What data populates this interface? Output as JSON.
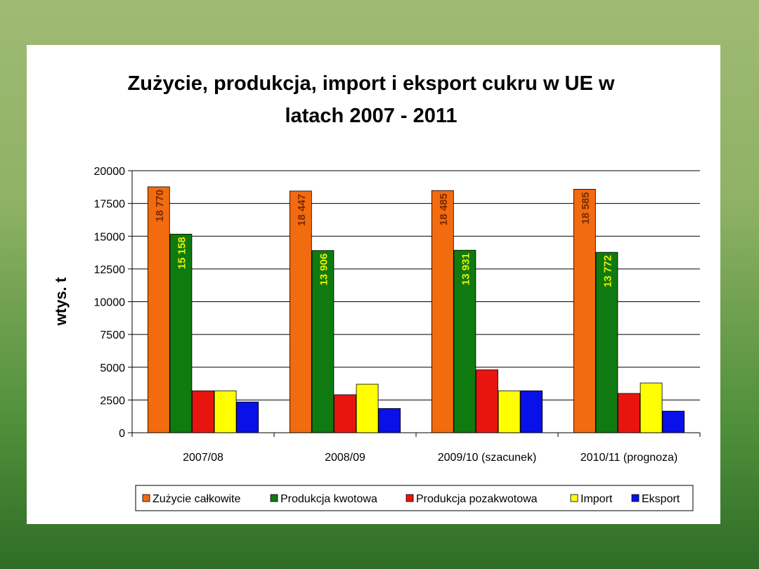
{
  "chart_data": {
    "type": "bar",
    "title": [
      "Zużycie, produkcja, import i eksport cukru w UE w",
      "latach 2007 - 2011"
    ],
    "ylabel": "wtys. t",
    "xlabel": "",
    "ylim": [
      0,
      20000
    ],
    "yticks": [
      "0",
      "2500",
      "5000",
      "7500",
      "10000",
      "12500",
      "15000",
      "17500",
      "20000"
    ],
    "ytick_values": [
      0,
      2500,
      5000,
      7500,
      10000,
      12500,
      15000,
      17500,
      20000
    ],
    "grid": true,
    "legend_position": "bottom",
    "categories": [
      "2007/08",
      "2008/09",
      "2009/10 (szacunek)",
      "2010/11 (prognoza)"
    ],
    "series": [
      {
        "name": "Zużycie całkowite",
        "color": "#f26b0f",
        "values": [
          18770,
          18447,
          18485,
          18585
        ],
        "labels": [
          "18 770",
          "18 447",
          "18 485",
          "18 585"
        ],
        "label_color": "#7a2a00"
      },
      {
        "name": "Produkcja kwotowa",
        "color": "#0f7a0f",
        "values": [
          15158,
          13906,
          13931,
          13772
        ],
        "labels": [
          "15 158",
          "13 906",
          "13 931",
          "13 772"
        ],
        "label_color": "#e8f000"
      },
      {
        "name": "Produkcja pozakwotowa",
        "color": "#e8150f",
        "values": [
          3200,
          2900,
          4800,
          3000
        ]
      },
      {
        "name": "Import",
        "color": "#ffff00",
        "values": [
          3200,
          3700,
          3200,
          3800
        ]
      },
      {
        "name": "Eksport",
        "color": "#0a10e8",
        "values": [
          2350,
          1850,
          3200,
          1650
        ]
      }
    ]
  }
}
